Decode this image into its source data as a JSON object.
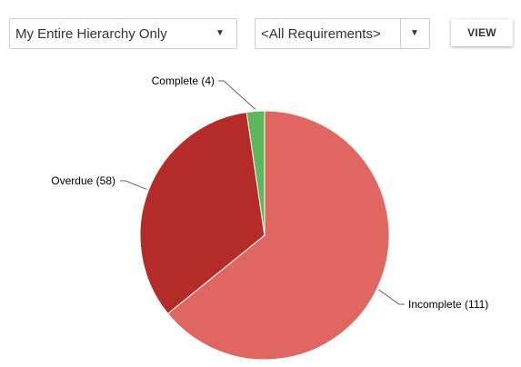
{
  "filters": {
    "hierarchy_value": "My Entire Hierarchy Only",
    "requirements_value": "<All Requirements>",
    "dropdown_arrow": "▼"
  },
  "view_button_label": "VIEW",
  "chart_data": {
    "type": "pie",
    "title": "",
    "slices": [
      {
        "label": "Incomplete (111)",
        "value": 111,
        "color": "#e06661"
      },
      {
        "label": "Overdue (58)",
        "value": 58,
        "color": "#b52b27"
      },
      {
        "label": "Complete (4)",
        "value": 4,
        "color": "#5cb85c"
      }
    ],
    "legend": "none"
  }
}
